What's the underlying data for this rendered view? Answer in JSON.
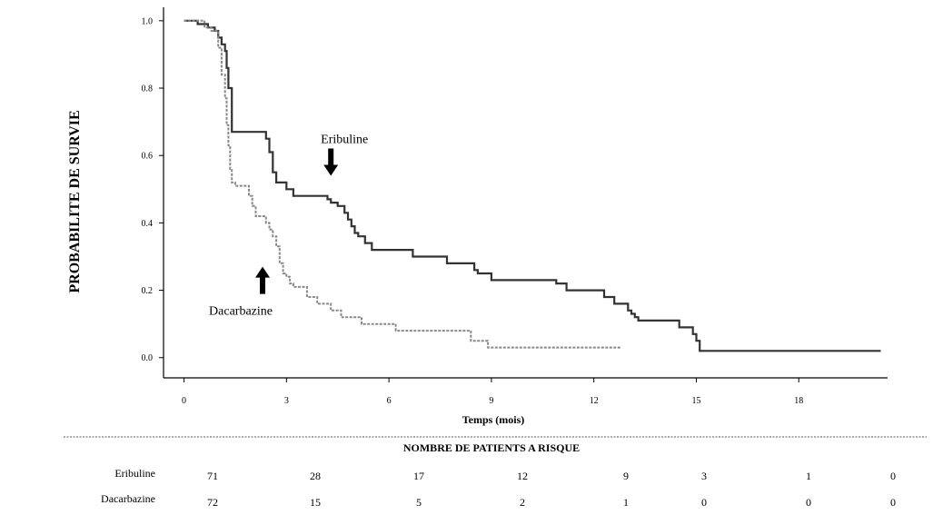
{
  "chart_data": {
    "type": "line",
    "xlabel": "Temps (mois)",
    "ylabel": "PROBABILITE DE SURVIE",
    "xlim": [
      -0.6,
      20.6
    ],
    "ylim": [
      -0.06,
      1.04
    ],
    "x_ticks": [
      0,
      3,
      6,
      9,
      12,
      15,
      18
    ],
    "y_ticks": [
      0.0,
      0.2,
      0.4,
      0.6,
      0.8,
      1.0
    ],
    "grid": false,
    "series": [
      {
        "name": "Eribuline",
        "color": "#333333",
        "style": "solid",
        "x": [
          0,
          0.4,
          0.7,
          0.9,
          1.0,
          1.1,
          1.2,
          1.25,
          1.3,
          1.4,
          2.4,
          2.5,
          2.6,
          2.7,
          3.0,
          3.2,
          3.6,
          4.2,
          4.3,
          4.5,
          4.7,
          4.8,
          4.9,
          5.0,
          5.1,
          5.3,
          5.5,
          6.7,
          7.3,
          7.7,
          8.5,
          8.6,
          9.0,
          9.5,
          9.7,
          10.9,
          11.2,
          12.3,
          12.6,
          13.0,
          13.1,
          13.2,
          13.3,
          14.4,
          14.5,
          14.9,
          15.0,
          15.1,
          20.4
        ],
        "y": [
          1.0,
          0.99,
          0.98,
          0.97,
          0.95,
          0.93,
          0.91,
          0.86,
          0.8,
          0.67,
          0.65,
          0.61,
          0.55,
          0.52,
          0.5,
          0.48,
          0.48,
          0.47,
          0.46,
          0.45,
          0.43,
          0.41,
          0.39,
          0.37,
          0.36,
          0.34,
          0.32,
          0.3,
          0.3,
          0.28,
          0.26,
          0.25,
          0.23,
          0.23,
          0.23,
          0.22,
          0.2,
          0.18,
          0.16,
          0.14,
          0.13,
          0.12,
          0.11,
          0.11,
          0.09,
          0.07,
          0.05,
          0.02,
          0.02
        ]
      },
      {
        "name": "Dacarbazine",
        "color": "#888888",
        "style": "dashed",
        "x": [
          0,
          0.6,
          0.8,
          1.0,
          1.1,
          1.2,
          1.25,
          1.3,
          1.35,
          1.4,
          1.5,
          1.9,
          2.0,
          2.1,
          2.4,
          2.5,
          2.6,
          2.7,
          2.8,
          2.9,
          3.0,
          3.1,
          3.2,
          3.6,
          3.9,
          4.3,
          4.6,
          5.2,
          6.2,
          8.4,
          8.9,
          9.0,
          12.8
        ],
        "y": [
          1.0,
          0.98,
          0.97,
          0.92,
          0.84,
          0.77,
          0.69,
          0.63,
          0.56,
          0.52,
          0.51,
          0.48,
          0.45,
          0.42,
          0.4,
          0.38,
          0.36,
          0.33,
          0.28,
          0.25,
          0.24,
          0.22,
          0.21,
          0.18,
          0.16,
          0.14,
          0.12,
          0.1,
          0.08,
          0.05,
          0.03,
          0.03,
          0.03
        ]
      }
    ],
    "annotations": [
      {
        "text": "Eribuline",
        "at_x": 4.3,
        "at_y": 0.54,
        "arrow": "down"
      },
      {
        "text": "Dacarbazine",
        "at_x": 2.3,
        "at_y": 0.27,
        "arrow": "up"
      }
    ]
  },
  "risk_table": {
    "title": "NOMBRE DE PATIENTS A RISQUE",
    "rows": [
      {
        "name": "Eribuline",
        "values": [
          "71",
          "28",
          "17",
          "12",
          "9",
          "3",
          "1",
          "0"
        ]
      },
      {
        "name": "Dacarbazine",
        "values": [
          "72",
          "15",
          "5",
          "2",
          "1",
          "0",
          "0",
          "0"
        ]
      }
    ]
  }
}
